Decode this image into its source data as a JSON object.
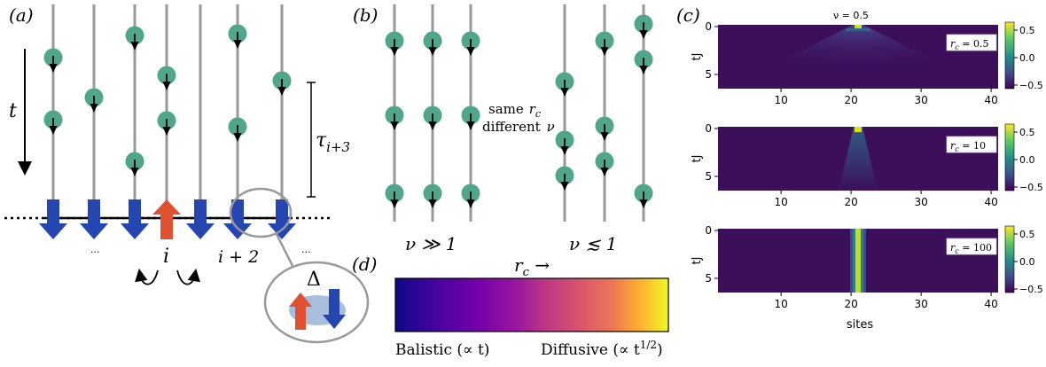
{
  "panel_a": {
    "label": "(a)",
    "time_label": "t",
    "tau_label": "τ",
    "tau_sub": "i+3",
    "site_i": "i",
    "site_i2": "i + 2",
    "dots_left": "...",
    "dots_right": "...",
    "gap_label": "Δ"
  },
  "panel_b": {
    "label": "(b)",
    "same_label": "same",
    "rc_symbol": "r",
    "rc_sub": "c",
    "different_label": "different",
    "nu_symbol": "ν",
    "caption_left": "ν ≫ 1",
    "caption_right": "ν ≲ 1"
  },
  "panel_c": {
    "label": "(c)",
    "title": "ν = 0.5",
    "xlabel": "sites",
    "ylabel": "tJ",
    "xticks": [
      "10",
      "20",
      "30",
      "40"
    ],
    "yticks": [
      "0",
      "5"
    ],
    "cbar_ticks": [
      "0.5",
      "0.0",
      "−0.5"
    ],
    "subplots": [
      {
        "rc_label": "r",
        "rc_sub": "c",
        "rc_value": " = 0.5"
      },
      {
        "rc_label": "r",
        "rc_sub": "c",
        "rc_value": " = 10"
      },
      {
        "rc_label": "r",
        "rc_sub": "c",
        "rc_value": " = 100"
      }
    ]
  },
  "panel_d": {
    "label": "(d)",
    "arrow_label": "r",
    "arrow_sub": "c",
    "arrow_tail": " →",
    "left_label": "Balistic (∝ t)",
    "right_label": "Diffusive (∝ t",
    "right_sup": "1/2",
    "right_close": ")"
  },
  "colors": {
    "particle": "#4fa68a",
    "spin_down": "#2545b0",
    "spin_up": "#e0512f",
    "line": "#999999",
    "heatmap_bg": "#3b0f5a"
  }
}
